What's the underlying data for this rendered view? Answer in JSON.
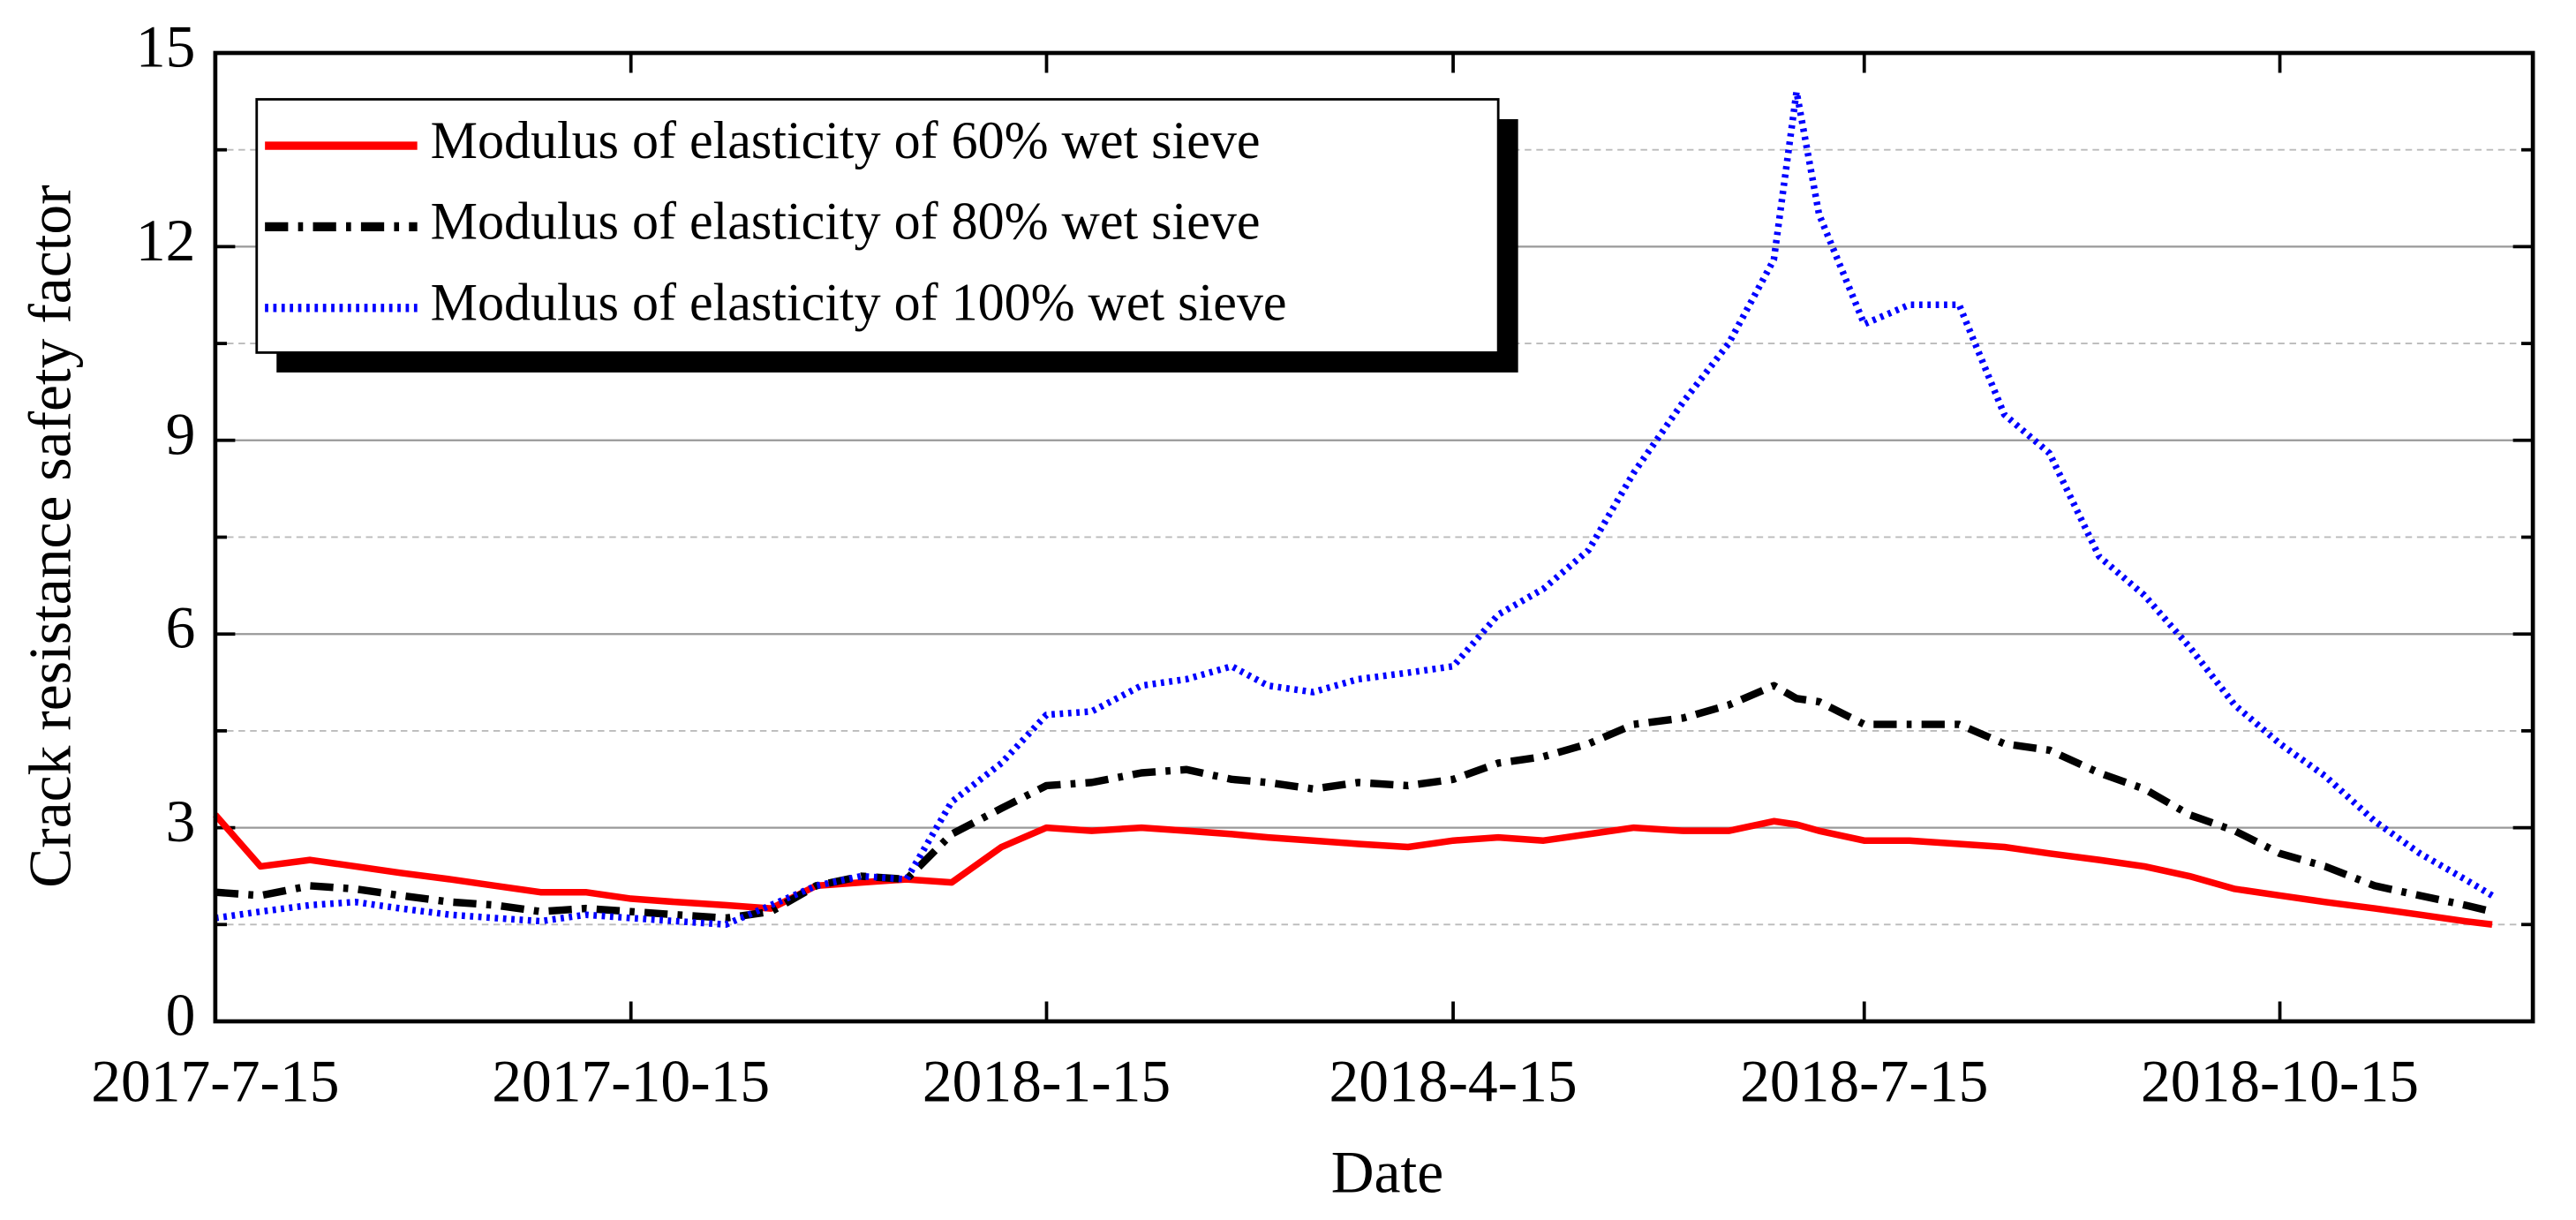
{
  "chart_data": {
    "type": "line",
    "x_label": "Date",
    "y_label": "Crack resistance safety factor",
    "x": [
      "2017-07-15",
      "2017-07-25",
      "2017-08-05",
      "2017-08-15",
      "2017-08-25",
      "2017-09-05",
      "2017-09-15",
      "2017-09-25",
      "2017-10-05",
      "2017-10-15",
      "2017-10-25",
      "2017-11-05",
      "2017-11-15",
      "2017-11-25",
      "2017-12-05",
      "2017-12-15",
      "2017-12-25",
      "2018-01-05",
      "2018-01-15",
      "2018-01-25",
      "2018-02-05",
      "2018-02-15",
      "2018-02-25",
      "2018-03-05",
      "2018-03-15",
      "2018-03-25",
      "2018-04-05",
      "2018-04-15",
      "2018-04-25",
      "2018-05-05",
      "2018-05-15",
      "2018-05-25",
      "2018-06-05",
      "2018-06-15",
      "2018-06-25",
      "2018-06-30",
      "2018-07-05",
      "2018-07-15",
      "2018-07-25",
      "2018-08-05",
      "2018-08-15",
      "2018-08-25",
      "2018-09-05",
      "2018-09-15",
      "2018-09-25",
      "2018-10-05",
      "2018-10-15",
      "2018-10-25",
      "2018-11-05",
      "2018-11-15",
      "2018-11-25",
      "2018-12-01"
    ],
    "series": [
      {
        "name": "Modulus of elasticity of 60% wet sieve",
        "color": "#ff0000",
        "style": "solid",
        "values": [
          3.2,
          2.4,
          2.5,
          2.4,
          2.3,
          2.2,
          2.1,
          2.0,
          2.0,
          1.9,
          1.85,
          1.8,
          1.75,
          2.1,
          2.15,
          2.2,
          2.15,
          2.7,
          3.0,
          2.95,
          3.0,
          2.95,
          2.9,
          2.85,
          2.8,
          2.75,
          2.7,
          2.8,
          2.85,
          2.8,
          2.9,
          3.0,
          2.95,
          2.95,
          3.1,
          3.05,
          2.95,
          2.8,
          2.8,
          2.75,
          2.7,
          2.6,
          2.5,
          2.4,
          2.25,
          2.05,
          1.95,
          1.85,
          1.75,
          1.65,
          1.55,
          1.5
        ]
      },
      {
        "name": "Modulus of elasticity of 80% wet sieve",
        "color": "#000000",
        "style": "dashdot",
        "values": [
          2.0,
          1.95,
          2.1,
          2.05,
          1.95,
          1.85,
          1.8,
          1.7,
          1.75,
          1.7,
          1.65,
          1.6,
          1.7,
          2.1,
          2.25,
          2.2,
          2.9,
          3.3,
          3.65,
          3.7,
          3.85,
          3.9,
          3.75,
          3.7,
          3.6,
          3.7,
          3.65,
          3.75,
          4.0,
          4.1,
          4.3,
          4.6,
          4.7,
          4.9,
          5.2,
          5.0,
          4.95,
          4.6,
          4.6,
          4.6,
          4.3,
          4.2,
          3.85,
          3.6,
          3.2,
          2.95,
          2.6,
          2.4,
          2.1,
          1.95,
          1.8,
          1.7
        ]
      },
      {
        "name": "Modulus of elasticity of 100% wet sieve",
        "color": "#0000ff",
        "style": "dotted",
        "values": [
          1.6,
          1.7,
          1.8,
          1.85,
          1.75,
          1.65,
          1.6,
          1.55,
          1.65,
          1.6,
          1.55,
          1.5,
          1.8,
          2.1,
          2.25,
          2.2,
          3.4,
          4.0,
          4.75,
          4.8,
          5.2,
          5.3,
          5.5,
          5.2,
          5.1,
          5.3,
          5.4,
          5.5,
          6.3,
          6.7,
          7.3,
          8.5,
          9.6,
          10.5,
          11.8,
          14.4,
          12.5,
          10.8,
          11.1,
          11.1,
          9.4,
          8.8,
          7.2,
          6.6,
          5.8,
          4.9,
          4.3,
          3.8,
          3.1,
          2.6,
          2.2,
          1.95
        ]
      }
    ],
    "xlim": [
      "2017-07-15",
      "2018-12-10"
    ],
    "xticks": [
      {
        "value": "2017-07-15",
        "label": "2017-7-15"
      },
      {
        "value": "2017-10-15",
        "label": "2017-10-15"
      },
      {
        "value": "2018-01-15",
        "label": "2018-1-15"
      },
      {
        "value": "2018-04-15",
        "label": "2018-4-15"
      },
      {
        "value": "2018-07-15",
        "label": "2018-7-15"
      },
      {
        "value": "2018-10-15",
        "label": "2018-10-15"
      }
    ],
    "ylim": [
      0,
      15
    ],
    "yticks": [
      0,
      3,
      6,
      9,
      12,
      15
    ],
    "yminor": [
      1.5,
      4.5,
      7.5,
      10.5,
      13.5
    ],
    "grid": true,
    "legend": "upper left"
  }
}
